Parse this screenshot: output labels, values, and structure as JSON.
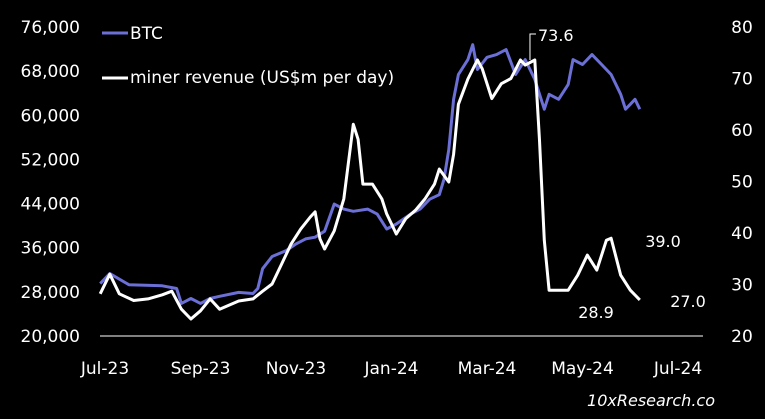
{
  "chart_data": {
    "type": "line",
    "title": "",
    "xlabel": "",
    "ylabel_left": "",
    "ylabel_right": "",
    "x_tick_labels": [
      "Jul-23",
      "Sep-23",
      "Nov-23",
      "Jan-24",
      "Mar-24",
      "May-24",
      "Jul-24"
    ],
    "y_left": {
      "ticks": [
        "20,000",
        "28,000",
        "36,000",
        "44,000",
        "52,000",
        "60,000",
        "68,000",
        "76,000"
      ],
      "range": [
        20000,
        76000
      ]
    },
    "y_right": {
      "ticks": [
        "20",
        "30",
        "40",
        "50",
        "60",
        "70",
        "80"
      ],
      "range": [
        20,
        80
      ]
    },
    "x_range_months": [
      -0.1,
      12.6
    ],
    "grid": false,
    "legend_position": "top-left",
    "colors": {
      "btc": "#6b6fd6",
      "miner": "#ffffff",
      "background": "#000000"
    },
    "series": [
      {
        "name": "BTC",
        "axis": "left",
        "x_months": [
          -0.1,
          0.1,
          0.5,
          1.2,
          1.5,
          1.6,
          1.8,
          2.0,
          2.2,
          2.4,
          2.8,
          3.1,
          3.2,
          3.3,
          3.5,
          3.8,
          4.0,
          4.2,
          4.4,
          4.6,
          4.8,
          5.0,
          5.2,
          5.5,
          5.7,
          5.9,
          6.1,
          6.4,
          6.6,
          6.8,
          7.0,
          7.1,
          7.2,
          7.3,
          7.4,
          7.6,
          7.7,
          7.8,
          8.0,
          8.2,
          8.4,
          8.6,
          8.8,
          9.0,
          9.2,
          9.3,
          9.5,
          9.7,
          9.8,
          10.0,
          10.2,
          10.4,
          10.6,
          10.8,
          10.9,
          11.0,
          11.1,
          11.2
        ],
        "values": [
          29500,
          31300,
          29300,
          29100,
          28600,
          25900,
          26800,
          25900,
          26800,
          27200,
          27900,
          27700,
          28600,
          32200,
          34400,
          35500,
          36700,
          37600,
          37900,
          39000,
          43900,
          43000,
          42600,
          43000,
          42100,
          39400,
          40300,
          42100,
          43000,
          44800,
          45600,
          48400,
          53800,
          62900,
          67400,
          70100,
          72800,
          68300,
          70500,
          71000,
          71900,
          67400,
          70100,
          66500,
          61100,
          63800,
          62900,
          65600,
          70100,
          69200,
          71000,
          69200,
          67400,
          63800,
          61100,
          62000,
          62900,
          61100
        ]
      },
      {
        "name": "miner revenue (US$m per day)",
        "axis": "right",
        "x_months": [
          -0.1,
          0.1,
          0.3,
          0.6,
          0.9,
          1.2,
          1.4,
          1.6,
          1.8,
          2.0,
          2.2,
          2.4,
          2.8,
          3.1,
          3.3,
          3.5,
          3.7,
          3.9,
          4.1,
          4.3,
          4.4,
          4.5,
          4.6,
          4.8,
          5.0,
          5.2,
          5.3,
          5.4,
          5.6,
          5.8,
          5.9,
          6.1,
          6.3,
          6.5,
          6.7,
          6.9,
          7.0,
          7.2,
          7.3,
          7.4,
          7.6,
          7.8,
          7.9,
          8.1,
          8.3,
          8.5,
          8.7,
          8.8,
          9.0,
          9.1,
          9.2,
          9.3,
          9.5,
          9.7,
          9.9,
          10.1,
          10.3,
          10.5,
          10.6,
          10.8,
          11.0,
          11.2
        ],
        "values": [
          28.2,
          32.0,
          28.2,
          26.9,
          27.2,
          28.0,
          28.7,
          25.2,
          23.3,
          24.9,
          27.2,
          25.2,
          26.8,
          27.2,
          28.7,
          30.1,
          34.0,
          37.9,
          40.8,
          43.1,
          44.1,
          38.9,
          36.9,
          40.4,
          46.6,
          61.1,
          58.2,
          49.5,
          49.5,
          46.6,
          43.7,
          39.8,
          42.8,
          44.4,
          46.6,
          49.5,
          52.4,
          49.9,
          55.3,
          65.0,
          69.9,
          73.6,
          71.9,
          66.1,
          69.0,
          70.0,
          73.6,
          72.6,
          73.6,
          58.0,
          38.6,
          28.9,
          28.9,
          28.9,
          31.8,
          35.7,
          32.8,
          38.6,
          39.0,
          31.8,
          28.9,
          27.0
        ]
      }
    ],
    "annotations": [
      {
        "text": "73.6",
        "series": "miner revenue (US$m per day)",
        "x_month": 8.9,
        "value": 73.6,
        "style": "leader-line"
      },
      {
        "text": "39.0",
        "series": "miner revenue (US$m per day)",
        "x_month": 10.6,
        "value": 39.0
      },
      {
        "text": "28.9",
        "series": "miner revenue (US$m per day)",
        "x_month": 9.4,
        "value": 28.9
      },
      {
        "text": "27.0",
        "series": "miner revenue (US$m per day)",
        "x_month": 11.2,
        "value": 27.0
      }
    ],
    "source": "10xResearch.co"
  }
}
